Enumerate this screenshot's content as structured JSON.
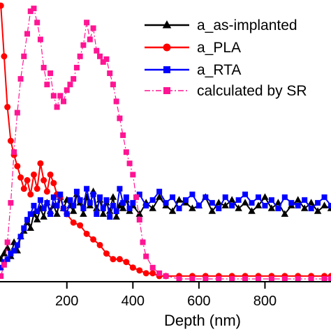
{
  "chart_data": {
    "type": "line",
    "title": "",
    "xlabel": "Depth (nm)",
    "ylabel": "",
    "xlim": [
      -30,
      1000
    ],
    "ylim": [
      0,
      1
    ],
    "x_ticks": [
      200,
      400,
      600,
      800
    ],
    "x_tick_labels": [
      "200",
      "400",
      "600",
      "800"
    ],
    "legend": {
      "position": "top-right"
    },
    "series": [
      {
        "name": "a_as-implanted",
        "color": "#000000",
        "marker": "triangle",
        "line": "solid",
        "x": [
          0,
          10,
          20,
          30,
          40,
          50,
          60,
          70,
          80,
          90,
          100,
          110,
          120,
          130,
          140,
          150,
          160,
          170,
          180,
          190,
          200,
          210,
          220,
          230,
          240,
          250,
          260,
          270,
          280,
          290,
          300,
          310,
          320,
          330,
          340,
          350,
          360,
          370,
          380,
          390,
          400,
          420,
          440,
          460,
          480,
          500,
          520,
          540,
          560,
          580,
          600,
          620,
          640,
          660,
          680,
          700,
          720,
          740,
          760,
          780,
          800,
          820,
          840,
          860,
          880,
          900,
          920,
          940,
          960,
          980,
          1000
        ],
        "y": [
          0.08,
          0.1,
          0.12,
          0.09,
          0.14,
          0.11,
          0.16,
          0.18,
          0.21,
          0.19,
          0.24,
          0.22,
          0.26,
          0.23,
          0.28,
          0.25,
          0.27,
          0.24,
          0.3,
          0.26,
          0.29,
          0.27,
          0.25,
          0.31,
          0.28,
          0.24,
          0.3,
          0.27,
          0.32,
          0.26,
          0.29,
          0.24,
          0.28,
          0.25,
          0.3,
          0.23,
          0.27,
          0.26,
          0.29,
          0.25,
          0.27,
          0.24,
          0.28,
          0.26,
          0.3,
          0.27,
          0.25,
          0.29,
          0.28,
          0.26,
          0.27,
          0.3,
          0.25,
          0.28,
          0.27,
          0.29,
          0.26,
          0.28,
          0.25,
          0.27,
          0.3,
          0.26,
          0.28,
          0.24,
          0.27,
          0.29,
          0.26,
          0.28,
          0.25,
          0.27,
          0.26
        ]
      },
      {
        "name": "a_PLA",
        "color": "#ff0000",
        "marker": "circle",
        "line": "solid",
        "x": [
          0,
          10,
          20,
          30,
          40,
          50,
          60,
          70,
          80,
          90,
          100,
          110,
          120,
          130,
          140,
          150,
          160,
          170,
          180,
          190,
          200,
          220,
          240,
          260,
          280,
          300,
          320,
          340,
          360,
          380,
          400,
          420,
          440,
          460,
          480,
          500,
          540,
          580,
          620,
          660,
          700,
          740,
          780,
          820,
          860,
          900,
          940,
          980,
          1000
        ],
        "y": [
          0.98,
          0.8,
          0.62,
          0.5,
          0.45,
          0.41,
          0.37,
          0.33,
          0.36,
          0.31,
          0.38,
          0.33,
          0.42,
          0.36,
          0.32,
          0.38,
          0.35,
          0.31,
          0.3,
          0.26,
          0.24,
          0.21,
          0.2,
          0.17,
          0.15,
          0.13,
          0.1,
          0.08,
          0.08,
          0.07,
          0.05,
          0.04,
          0.03,
          0.03,
          0.02,
          0.02,
          0.02,
          0.02,
          0.02,
          0.02,
          0.02,
          0.02,
          0.02,
          0.02,
          0.02,
          0.02,
          0.02,
          0.02,
          0.02
        ]
      },
      {
        "name": "a_RTA",
        "color": "#0000ff",
        "marker": "square",
        "line": "solid",
        "x": [
          0,
          10,
          20,
          30,
          40,
          50,
          60,
          70,
          80,
          90,
          100,
          110,
          120,
          130,
          140,
          150,
          160,
          170,
          180,
          190,
          200,
          210,
          220,
          230,
          240,
          250,
          260,
          270,
          280,
          290,
          300,
          310,
          320,
          330,
          340,
          350,
          360,
          370,
          380,
          390,
          400,
          420,
          440,
          460,
          480,
          500,
          520,
          540,
          560,
          580,
          600,
          620,
          640,
          660,
          680,
          700,
          720,
          740,
          760,
          780,
          800,
          820,
          840,
          860,
          880,
          900,
          920,
          940,
          960,
          980,
          1000
        ],
        "y": [
          0.05,
          0.07,
          0.08,
          0.1,
          0.11,
          0.13,
          0.16,
          0.19,
          0.22,
          0.24,
          0.27,
          0.25,
          0.29,
          0.26,
          0.28,
          0.24,
          0.3,
          0.27,
          0.31,
          0.26,
          0.24,
          0.29,
          0.27,
          0.32,
          0.29,
          0.26,
          0.33,
          0.28,
          0.31,
          0.24,
          0.3,
          0.26,
          0.29,
          0.23,
          0.27,
          0.25,
          0.33,
          0.28,
          0.3,
          0.26,
          0.28,
          0.31,
          0.27,
          0.29,
          0.32,
          0.28,
          0.3,
          0.26,
          0.29,
          0.31,
          0.27,
          0.3,
          0.28,
          0.26,
          0.3,
          0.27,
          0.29,
          0.31,
          0.28,
          0.3,
          0.27,
          0.29,
          0.26,
          0.3,
          0.28,
          0.27,
          0.29,
          0.26,
          0.28,
          0.3,
          0.27
        ]
      },
      {
        "name": "calculated by SR",
        "color": "#ff1493",
        "marker": "square",
        "line": "dashdot",
        "x": [
          0,
          10,
          20,
          30,
          40,
          50,
          60,
          70,
          80,
          90,
          100,
          110,
          120,
          130,
          140,
          150,
          160,
          170,
          180,
          190,
          200,
          210,
          220,
          230,
          240,
          250,
          260,
          270,
          280,
          290,
          300,
          310,
          320,
          330,
          340,
          350,
          360,
          370,
          380,
          390,
          400,
          410,
          420,
          430,
          440,
          460,
          480,
          500,
          540,
          580,
          620,
          660,
          700,
          740,
          780,
          820,
          860,
          900,
          940,
          980,
          1000
        ],
        "y": [
          0.02,
          0.06,
          0.14,
          0.28,
          0.46,
          0.6,
          0.72,
          0.8,
          0.88,
          0.96,
          0.97,
          0.92,
          0.86,
          0.76,
          0.7,
          0.74,
          0.66,
          0.62,
          0.66,
          0.64,
          0.68,
          0.7,
          0.72,
          0.76,
          0.8,
          0.84,
          0.92,
          0.86,
          0.9,
          0.82,
          0.8,
          0.78,
          0.79,
          0.74,
          0.7,
          0.64,
          0.58,
          0.52,
          0.46,
          0.42,
          0.38,
          0.3,
          0.22,
          0.14,
          0.09,
          0.05,
          0.03,
          0.02,
          0.01,
          0.01,
          0.01,
          0.01,
          0.01,
          0.01,
          0.01,
          0.01,
          0.01,
          0.01,
          0.01,
          0.01,
          0.01
        ]
      }
    ]
  }
}
